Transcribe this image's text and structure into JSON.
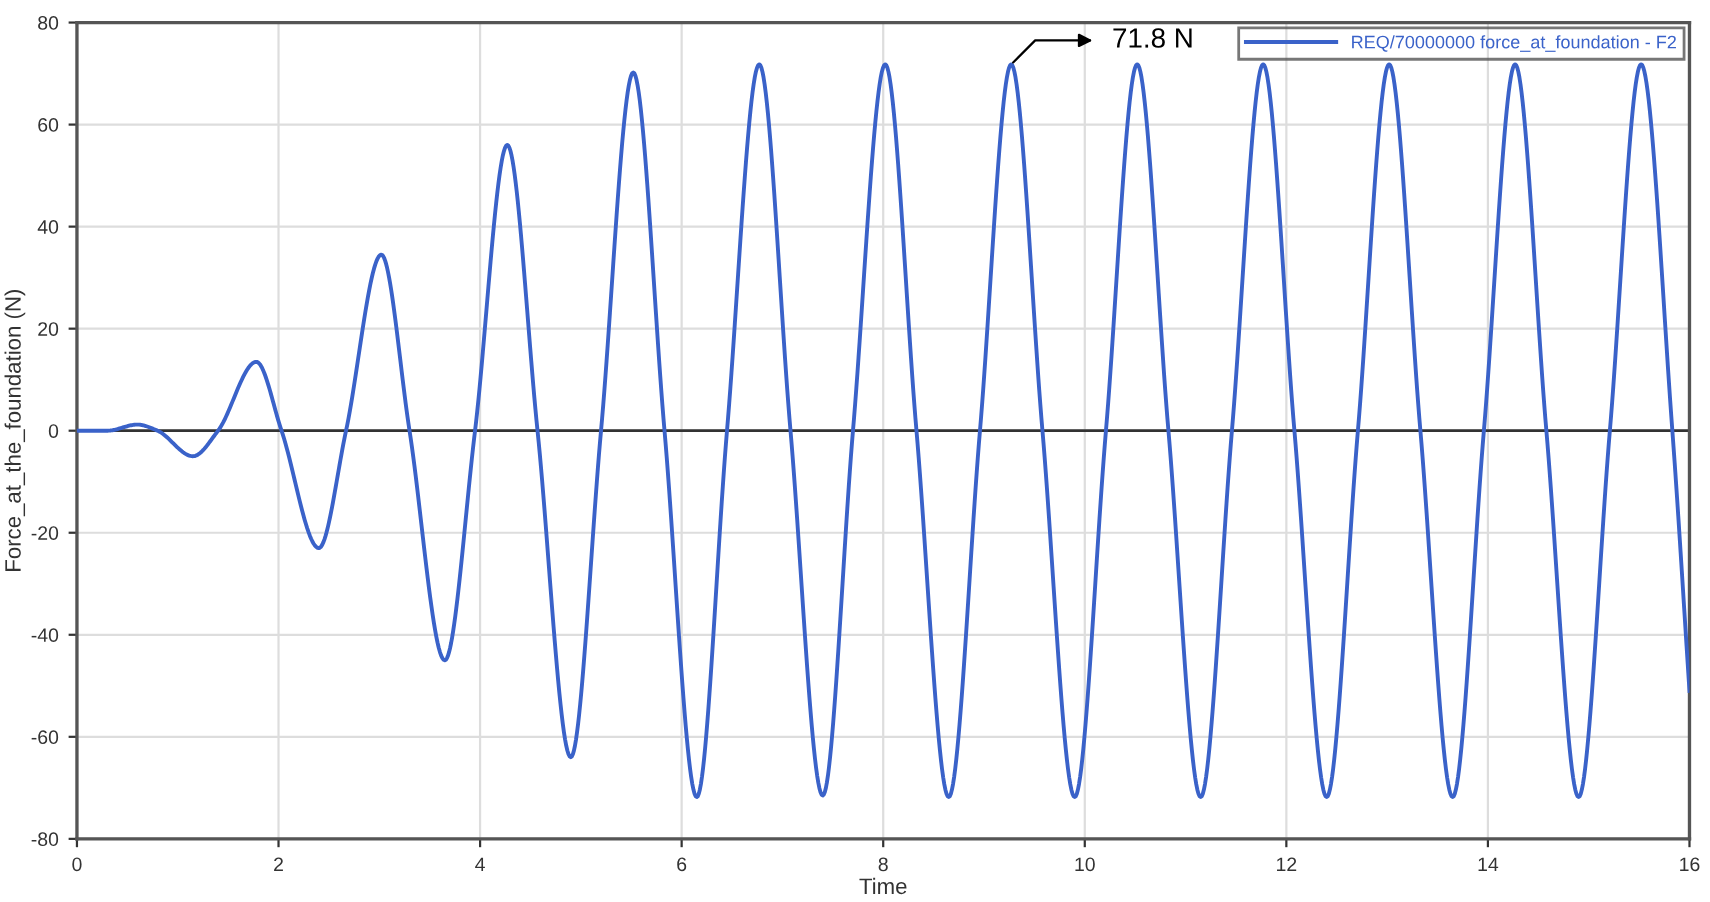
{
  "chart_data": {
    "type": "line",
    "xlabel": "Time",
    "ylabel": "Force_at_the_foundation (N)",
    "series": [
      {
        "name": "REQ/70000000 force_at_foundation - F2",
        "color": "#3a62c9",
        "x": [
          0,
          0.3,
          0.6,
          0.8,
          1.15,
          1.4,
          1.78,
          2.03,
          2.4,
          2.67,
          3.02,
          3.3,
          3.65,
          3.95,
          4.27,
          4.57,
          4.9,
          5.2,
          5.52,
          5.83,
          6.15,
          6.45,
          6.77,
          7.08,
          7.4,
          7.7,
          8.02,
          8.33,
          8.65,
          8.96,
          9.27,
          9.58,
          9.9,
          10.21,
          10.52,
          10.83,
          11.15,
          11.46,
          11.77,
          12.08,
          12.4,
          12.71,
          13.02,
          13.33,
          13.65,
          13.96,
          14.27,
          14.58,
          14.9,
          15.21,
          15.52,
          15.83,
          16
        ],
        "values": [
          0,
          0,
          1.2,
          0,
          -5,
          0,
          13.5,
          0,
          -23,
          0,
          34.5,
          0,
          -45,
          0,
          56,
          0,
          -64,
          0,
          70.2,
          0,
          -71.8,
          0,
          71.8,
          0,
          -71.5,
          0,
          71.8,
          0,
          -71.8,
          0,
          71.8,
          0,
          -71.8,
          0,
          71.8,
          0,
          -71.8,
          0,
          71.8,
          0,
          -71.8,
          0,
          71.8,
          0,
          -71.8,
          0,
          71.8,
          0,
          -71.8,
          0,
          71.8,
          0,
          -51
        ]
      }
    ],
    "xlim": [
      0,
      16
    ],
    "xticks": [
      0,
      2,
      4,
      6,
      8,
      10,
      12,
      14,
      16
    ],
    "ylim": [
      -80,
      80
    ],
    "yticks": [
      -80,
      -60,
      -40,
      -20,
      0,
      20,
      40,
      60,
      80
    ],
    "grid": true,
    "legend": "top right",
    "marker": "none",
    "line_style": "solid",
    "ref_lines": [
      {
        "axis": "y",
        "value": 0,
        "color": "#333333"
      }
    ],
    "annotations": [
      {
        "text": "71.8 N",
        "x": 9.27,
        "y": 71.8
      }
    ]
  }
}
